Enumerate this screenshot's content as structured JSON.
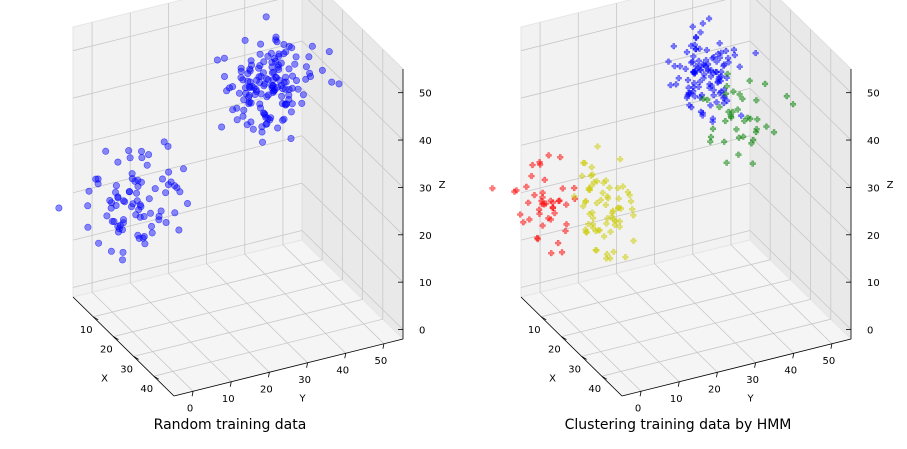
{
  "chart_data": [
    {
      "type": "scatter3d",
      "title": "Random training data",
      "xlabel": "X",
      "ylabel": "Y",
      "zlabel": "Z",
      "x_ticks": [
        10,
        20,
        30,
        40
      ],
      "y_ticks": [
        0,
        10,
        20,
        30,
        40,
        50
      ],
      "z_ticks": [
        0,
        10,
        20,
        30,
        40,
        50
      ],
      "xlim": [
        0,
        50
      ],
      "ylim": [
        -5,
        55
      ],
      "zlim": [
        -2,
        55
      ],
      "grid": true,
      "series": [
        {
          "color": "#0000ff",
          "marker": "o",
          "clusters": [
            {
              "count": 85,
              "center": [
                12,
                5,
                20
              ],
              "spread": [
                4,
                6,
                5
              ]
            },
            {
              "count": 150,
              "center": [
                15,
                38,
                40
              ],
              "spread": [
                3,
                5,
                5
              ]
            }
          ]
        }
      ]
    },
    {
      "type": "scatter3d",
      "title": "Clustering training data by HMM",
      "xlabel": "X",
      "ylabel": "Y",
      "zlabel": "Z",
      "x_ticks": [
        10,
        20,
        30,
        40
      ],
      "y_ticks": [
        0,
        10,
        20,
        30,
        40,
        50
      ],
      "z_ticks": [
        0,
        10,
        20,
        30,
        40,
        50
      ],
      "xlim": [
        0,
        50
      ],
      "ylim": [
        -5,
        55
      ],
      "zlim": [
        -2,
        55
      ],
      "grid": true,
      "series": [
        {
          "color": "#ff0000",
          "marker": "P",
          "clusters": [
            {
              "count": 45,
              "center": [
                10,
                -4,
                21
              ],
              "spread": [
                4,
                4,
                4
              ]
            }
          ]
        },
        {
          "color": "#cccc00",
          "marker": "P",
          "clusters": [
            {
              "count": 70,
              "center": [
                13,
                10,
                18
              ],
              "spread": [
                4,
                4,
                5
              ]
            }
          ]
        },
        {
          "color": "#0000ff",
          "marker": "P",
          "clusters": [
            {
              "count": 110,
              "center": [
                13,
                36,
                42
              ],
              "spread": [
                3,
                4,
                4
              ]
            }
          ]
        },
        {
          "color": "#008000",
          "marker": "P",
          "clusters": [
            {
              "count": 40,
              "center": [
                20,
                42,
                35
              ],
              "spread": [
                3,
                4,
                5
              ]
            }
          ]
        }
      ]
    }
  ]
}
